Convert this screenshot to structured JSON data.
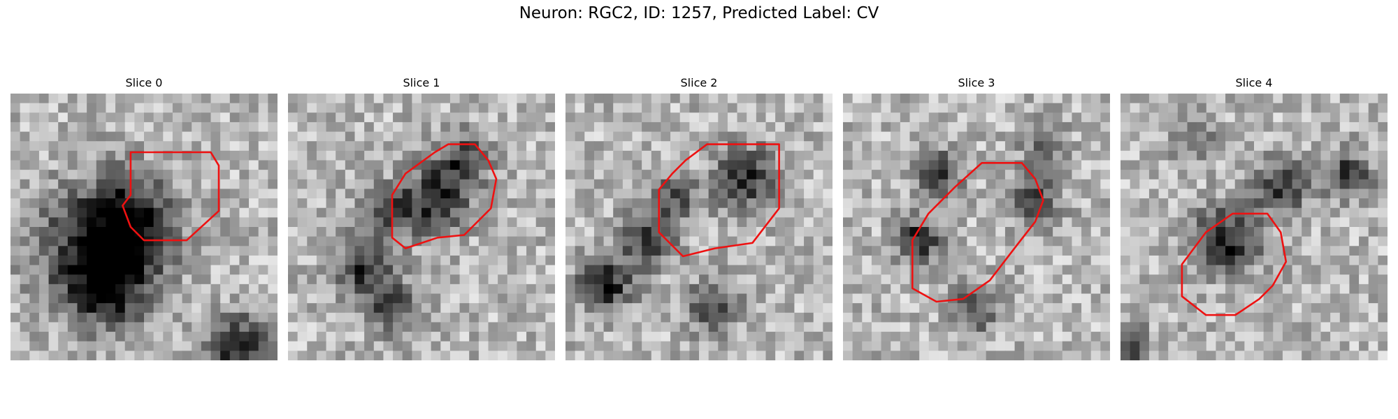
{
  "figure": {
    "title": "Neuron: RGC2, ID: 1257, Predicted Label: CV"
  },
  "panels": [
    {
      "title": "Slice 0",
      "seed": 11,
      "dark": [
        [
          0.45,
          0.48,
          0.17,
          1.0
        ],
        [
          0.3,
          0.58,
          0.22,
          0.8
        ],
        [
          0.37,
          0.72,
          0.15,
          0.9
        ],
        [
          0.86,
          0.95,
          0.12,
          1.0
        ]
      ],
      "contour": [
        [
          0.45,
          0.22
        ],
        [
          0.75,
          0.22
        ],
        [
          0.78,
          0.27
        ],
        [
          0.78,
          0.44
        ],
        [
          0.66,
          0.55
        ],
        [
          0.5,
          0.55
        ],
        [
          0.45,
          0.5
        ],
        [
          0.42,
          0.42
        ],
        [
          0.45,
          0.38
        ]
      ]
    },
    {
      "title": "Slice 1",
      "seed": 23,
      "dark": [
        [
          0.28,
          0.65,
          0.1,
          0.9
        ],
        [
          0.4,
          0.8,
          0.1,
          0.8
        ],
        [
          0.55,
          0.4,
          0.12,
          0.9
        ],
        [
          0.65,
          0.25,
          0.1,
          0.8
        ],
        [
          0.38,
          0.45,
          0.1,
          0.7
        ]
      ],
      "contour": [
        [
          0.6,
          0.19
        ],
        [
          0.7,
          0.19
        ],
        [
          0.75,
          0.25
        ],
        [
          0.78,
          0.32
        ],
        [
          0.76,
          0.43
        ],
        [
          0.66,
          0.53
        ],
        [
          0.56,
          0.54
        ],
        [
          0.44,
          0.58
        ],
        [
          0.39,
          0.54
        ],
        [
          0.39,
          0.38
        ],
        [
          0.44,
          0.3
        ],
        [
          0.55,
          0.22
        ]
      ]
    },
    {
      "title": "Slice 2",
      "seed": 37,
      "dark": [
        [
          0.15,
          0.72,
          0.1,
          1.0
        ],
        [
          0.3,
          0.55,
          0.1,
          0.8
        ],
        [
          0.68,
          0.32,
          0.12,
          0.9
        ],
        [
          0.55,
          0.8,
          0.1,
          0.7
        ],
        [
          0.4,
          0.4,
          0.09,
          0.7
        ]
      ],
      "contour": [
        [
          0.53,
          0.19
        ],
        [
          0.8,
          0.19
        ],
        [
          0.8,
          0.43
        ],
        [
          0.7,
          0.56
        ],
        [
          0.56,
          0.58
        ],
        [
          0.44,
          0.61
        ],
        [
          0.35,
          0.52
        ],
        [
          0.35,
          0.36
        ],
        [
          0.4,
          0.3
        ],
        [
          0.45,
          0.25
        ]
      ]
    },
    {
      "title": "Slice 3",
      "seed": 41,
      "dark": [
        [
          0.28,
          0.55,
          0.08,
          1.0
        ],
        [
          0.35,
          0.3,
          0.09,
          0.8
        ],
        [
          0.72,
          0.4,
          0.09,
          0.8
        ],
        [
          0.5,
          0.8,
          0.09,
          0.7
        ],
        [
          0.75,
          0.2,
          0.08,
          0.6
        ]
      ],
      "contour": [
        [
          0.52,
          0.26
        ],
        [
          0.67,
          0.26
        ],
        [
          0.72,
          0.32
        ],
        [
          0.75,
          0.4
        ],
        [
          0.72,
          0.48
        ],
        [
          0.65,
          0.57
        ],
        [
          0.55,
          0.7
        ],
        [
          0.45,
          0.77
        ],
        [
          0.35,
          0.78
        ],
        [
          0.26,
          0.73
        ],
        [
          0.26,
          0.55
        ],
        [
          0.32,
          0.45
        ],
        [
          0.42,
          0.35
        ]
      ]
    },
    {
      "title": "Slice 4",
      "seed": 53,
      "dark": [
        [
          0.4,
          0.55,
          0.12,
          1.0
        ],
        [
          0.6,
          0.35,
          0.1,
          0.8
        ],
        [
          0.85,
          0.3,
          0.09,
          0.8
        ],
        [
          0.02,
          0.95,
          0.08,
          0.9
        ],
        [
          0.28,
          0.18,
          0.08,
          0.5
        ]
      ],
      "contour": [
        [
          0.42,
          0.45
        ],
        [
          0.55,
          0.45
        ],
        [
          0.6,
          0.52
        ],
        [
          0.62,
          0.63
        ],
        [
          0.57,
          0.72
        ],
        [
          0.52,
          0.77
        ],
        [
          0.43,
          0.83
        ],
        [
          0.32,
          0.83
        ],
        [
          0.23,
          0.76
        ],
        [
          0.23,
          0.64
        ],
        [
          0.32,
          0.52
        ]
      ]
    }
  ]
}
